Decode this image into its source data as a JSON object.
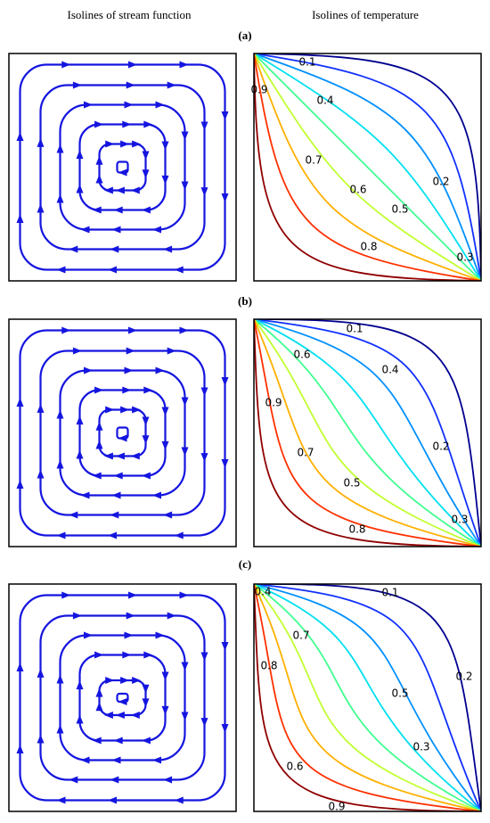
{
  "header": {
    "left": "Isolines of stream function",
    "right": "Isolines of temperature"
  },
  "panels": [
    {
      "label": "(a)",
      "contour_labels": [
        "0.1",
        "0.9",
        "0.4",
        "0.7",
        "0.6",
        "0.5",
        "0.2",
        "0.8",
        "0.3"
      ]
    },
    {
      "label": "(b)",
      "contour_labels": [
        "0.1",
        "0.6",
        "0.4",
        "0.9",
        "0.2",
        "0.7",
        "0.5",
        "0.3",
        "0.8"
      ]
    },
    {
      "label": "(c)",
      "contour_labels": [
        "0.4",
        "0.1",
        "0.7",
        "0.2",
        "0.8",
        "0.5",
        "0.3",
        "0.6",
        "0.9"
      ]
    }
  ]
}
